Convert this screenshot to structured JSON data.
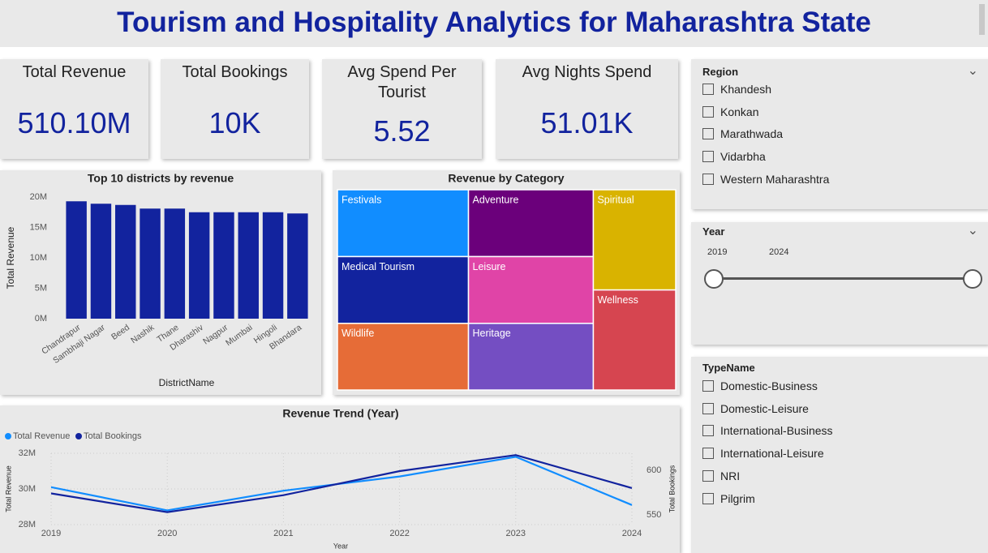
{
  "header": {
    "title": "Tourism and Hospitality Analytics for Maharashtra State"
  },
  "kpis": [
    {
      "label": "Total Revenue",
      "value": "510.10M"
    },
    {
      "label": "Total Bookings",
      "value": "10K"
    },
    {
      "label": "Avg Spend Per Tourist",
      "value": "5.52"
    },
    {
      "label": "Avg Nights Spend",
      "value": "51.01K"
    }
  ],
  "chart_data": [
    {
      "type": "bar",
      "title": "Top 10 districts by revenue",
      "x_label": "DistrictName",
      "y_label": "Total Revenue",
      "categories": [
        "Chandrapur",
        "Sambhaji Nagar",
        "Beed",
        "Nashik",
        "Thane",
        "Dharashiv",
        "Nagpur",
        "Mumbai",
        "Hingoli",
        "Bhandara"
      ],
      "values": [
        19.3,
        18.9,
        18.7,
        18.1,
        18.1,
        17.5,
        17.5,
        17.5,
        17.5,
        17.3
      ],
      "color": "#12239e",
      "ylim": [
        0,
        20
      ],
      "yticks": [
        {
          "value": 0,
          "label": "0M"
        },
        {
          "value": 5,
          "label": "5M"
        },
        {
          "value": 10,
          "label": "10M"
        },
        {
          "value": 15,
          "label": "15M"
        },
        {
          "value": 20,
          "label": "20M"
        }
      ]
    },
    {
      "type": "treemap",
      "title": "Revenue by Category",
      "categories": [
        "Festivals",
        "Medical Tourism",
        "Wildlife",
        "Adventure",
        "Leisure",
        "Heritage",
        "Spiritual",
        "Wellness"
      ],
      "values": [
        65.9,
        65.8,
        65.7,
        62.8,
        62.7,
        62.6,
        62.1,
        62.0
      ],
      "colors": [
        "#118dff",
        "#12239e",
        "#e66c37",
        "#6b007b",
        "#e044a7",
        "#744ec2",
        "#d9b300",
        "#d64550"
      ]
    },
    {
      "type": "line",
      "title": "Revenue Trend (Year)",
      "x_label": "Year",
      "y_label": "Total Revenue",
      "y2_label": "Total Bookings",
      "x": [
        2019,
        2020,
        2021,
        2022,
        2023,
        2024
      ],
      "xlim": [
        2019,
        2024
      ],
      "xticks": [
        2019,
        2020,
        2021,
        2022,
        2023,
        2024
      ],
      "series": [
        {
          "name": "Total Revenue",
          "color": "#118dff",
          "values": [
            30.1,
            28.8,
            29.9,
            30.7,
            31.8,
            29.1
          ]
        },
        {
          "name": "Total Bookings",
          "color": "#12239e",
          "axis": "y2",
          "values": [
            574,
            553,
            572,
            599,
            617,
            580
          ]
        }
      ],
      "ylim": [
        28,
        32
      ],
      "yticks": [
        {
          "value": 28,
          "label": "28M"
        },
        {
          "value": 30,
          "label": "30M"
        },
        {
          "value": 32,
          "label": "32M"
        }
      ],
      "y2lim": [
        539,
        619
      ],
      "y2ticks": [
        550,
        600
      ],
      "grid": true
    }
  ],
  "slicers": {
    "region": {
      "title": "Region",
      "items": [
        "Khandesh",
        "Konkan",
        "Marathwada",
        "Vidarbha",
        "Western Maharashtra"
      ]
    },
    "year": {
      "title": "Year",
      "start": "2019",
      "end": "2024"
    },
    "type": {
      "title": "TypeName",
      "items": [
        "Domestic-Business",
        "Domestic-Leisure",
        "International-Business",
        "International-Leisure",
        "NRI",
        "Pilgrim"
      ]
    }
  }
}
